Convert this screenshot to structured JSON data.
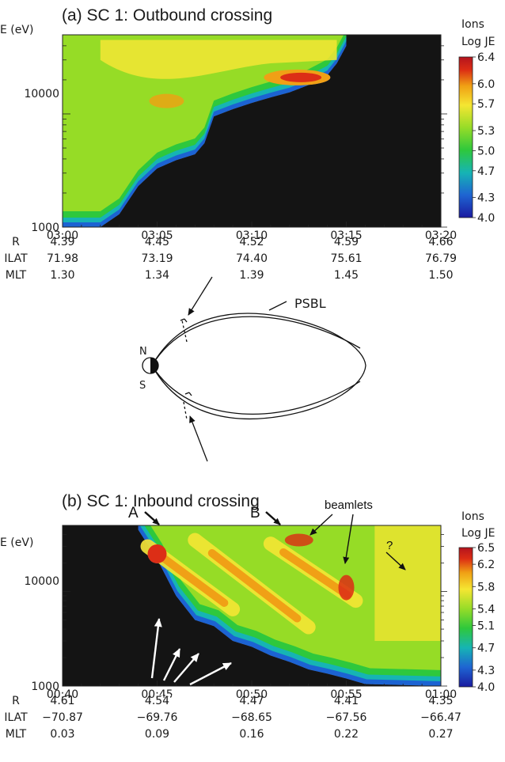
{
  "chart_data": [
    {
      "type": "heatmap",
      "title": "(a)  SC 1:  Outbound crossing",
      "ylabel": "E (eV)",
      "ytick_labels": [
        "10000",
        "1000"
      ],
      "x_ticks": [
        "03:00",
        "03:05",
        "03:10",
        "03:15",
        "03:20"
      ],
      "xlim": [
        "03:00",
        "03:20"
      ],
      "ylim": [
        1000,
        50000
      ],
      "yscale": "log",
      "colorbar": {
        "title": "Ions",
        "label": "Log JE",
        "ticks": [
          "6.4",
          "6.0",
          "5.7",
          "5.3",
          "5.0",
          "4.7",
          "4.3",
          "4.0"
        ],
        "range": [
          4.0,
          6.4
        ]
      },
      "orbit_rows": [
        {
          "label": "R",
          "values": [
            "4.39",
            "4.45",
            "4.52",
            "4.59",
            "4.66"
          ]
        },
        {
          "label": "ILAT",
          "values": [
            "71.98",
            "73.19",
            "74.40",
            "75.61",
            "76.79"
          ]
        },
        {
          "label": "MLT",
          "values": [
            "1.30",
            "1.34",
            "1.39",
            "1.45",
            "1.50"
          ]
        }
      ],
      "lower_cutoff_eV": [
        {
          "t": "03:00",
          "e": 1000
        },
        {
          "t": "03:02",
          "e": 1000
        },
        {
          "t": "03:03",
          "e": 1300
        },
        {
          "t": "03:04",
          "e": 2300
        },
        {
          "t": "03:05",
          "e": 3300
        },
        {
          "t": "03:06",
          "e": 3900
        },
        {
          "t": "03:07",
          "e": 4400
        },
        {
          "t": "03:07.5",
          "e": 5500
        },
        {
          "t": "03:08",
          "e": 9500
        },
        {
          "t": "03:09",
          "e": 11000
        },
        {
          "t": "03:10",
          "e": 12500
        },
        {
          "t": "03:11",
          "e": 14000
        },
        {
          "t": "03:12",
          "e": 15500
        },
        {
          "t": "03:13",
          "e": 18000
        },
        {
          "t": "03:14",
          "e": 22000
        },
        {
          "t": "03:14.5",
          "e": 28000
        },
        {
          "t": "03:15",
          "e": 40000
        }
      ]
    },
    {
      "type": "heatmap",
      "title": "(b)  SC 1:  Inbound crossing",
      "ylabel": "E (eV)",
      "ytick_labels": [
        "10000",
        "1000"
      ],
      "x_ticks": [
        "00:40",
        "00:45",
        "00:50",
        "00:55",
        "01:00"
      ],
      "xlim": [
        "00:40",
        "01:00"
      ],
      "ylim": [
        1000,
        50000
      ],
      "yscale": "log",
      "colorbar": {
        "title": "Ions",
        "label": "Log JE",
        "ticks": [
          "6.5",
          "6.2",
          "5.8",
          "5.4",
          "5.1",
          "4.7",
          "4.3",
          "4.0"
        ],
        "range": [
          4.0,
          6.5
        ]
      },
      "orbit_rows": [
        {
          "label": "R",
          "values": [
            "4.61",
            "4.54",
            "4.47",
            "4.41",
            "4.35"
          ]
        },
        {
          "label": "ILAT",
          "values": [
            "−70.87",
            "−69.76",
            "−68.65",
            "−67.56",
            "−66.47"
          ]
        },
        {
          "label": "MLT",
          "values": [
            "0.03",
            "0.09",
            "0.16",
            "0.22",
            "0.27"
          ]
        }
      ],
      "onset_time": "00:44",
      "lower_cutoff_eV": [
        {
          "t": "00:44",
          "e": 45000
        },
        {
          "t": "00:45",
          "e": 22000
        },
        {
          "t": "00:46",
          "e": 9000
        },
        {
          "t": "00:47",
          "e": 5000
        },
        {
          "t": "00:48",
          "e": 4300
        },
        {
          "t": "00:49",
          "e": 3000
        },
        {
          "t": "00:50",
          "e": 2600
        },
        {
          "t": "00:51",
          "e": 2100
        },
        {
          "t": "00:52",
          "e": 1800
        },
        {
          "t": "00:53",
          "e": 1500
        },
        {
          "t": "00:54",
          "e": 1350
        },
        {
          "t": "00:55",
          "e": 1200
        },
        {
          "t": "00:56",
          "e": 1050
        },
        {
          "t": "01:00",
          "e": 1000
        }
      ],
      "beamlets": [
        {
          "t_start": "00:44.5",
          "e_start": 30000,
          "t_end": "00:49",
          "e_end": 6500
        },
        {
          "t_start": "00:47",
          "e_start": 35000,
          "t_end": "00:53",
          "e_end": 4200
        },
        {
          "t_start": "00:51",
          "e_start": 32000,
          "t_end": "00:55.5",
          "e_end": 8000
        }
      ],
      "annotations": [
        "A",
        "B",
        "beamlets",
        "beamlets",
        "?"
      ]
    }
  ],
  "diagram": {
    "label_psbl": "PSBL",
    "label_north": "N",
    "label_south": "S"
  },
  "colors": {
    "scale": [
      "#1a1aa0",
      "#1e64d2",
      "#16b4b4",
      "#2ec83c",
      "#96dc28",
      "#f5e632",
      "#f0a014",
      "#dc2d14",
      "#b4141e"
    ],
    "background": "#141414",
    "arrow_white": "#ffffff",
    "arrow_black": "#111111"
  }
}
